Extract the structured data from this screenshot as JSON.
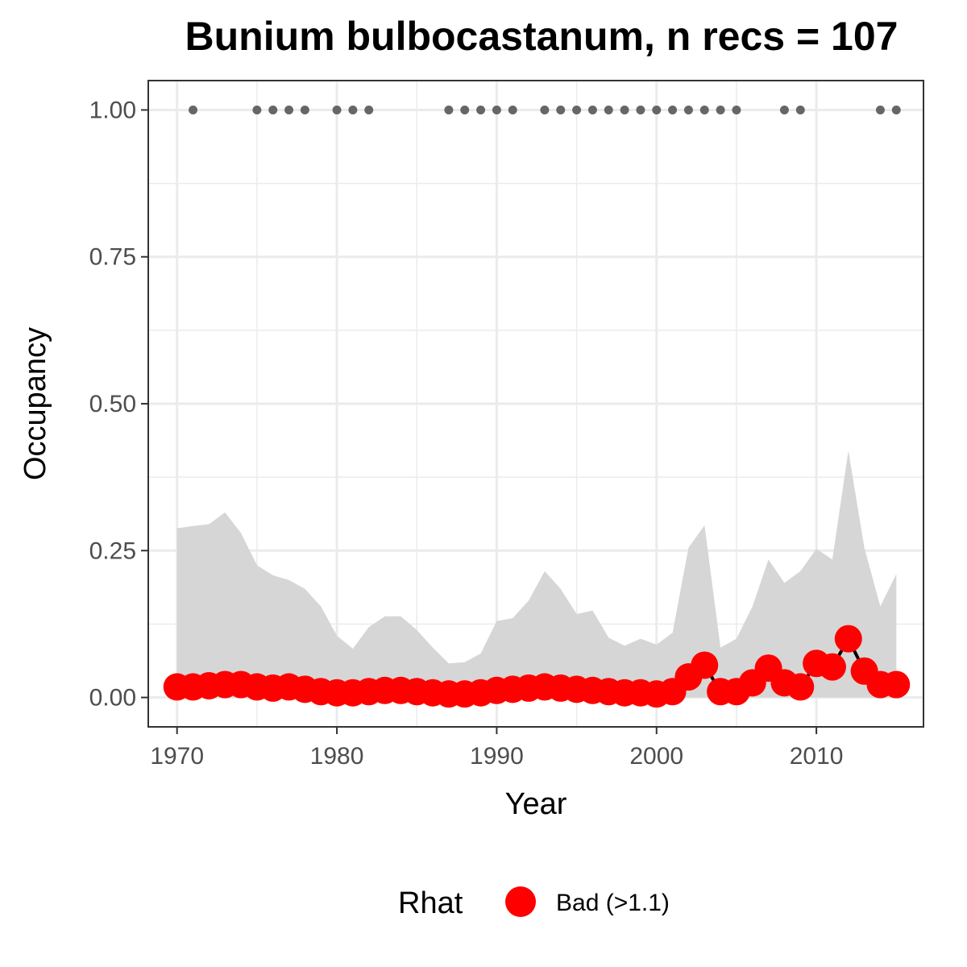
{
  "chart_data": {
    "type": "line",
    "title": "Bunium bulbocastanum, n recs = 107",
    "xlabel": "Year",
    "ylabel": "Occupancy",
    "xlim": [
      1968.2,
      2016.7
    ],
    "ylim": [
      -0.05,
      1.05
    ],
    "x_ticks": [
      1970,
      1980,
      1990,
      2000,
      2010
    ],
    "x_tick_labels": [
      "1970",
      "1980",
      "1990",
      "2000",
      "2010"
    ],
    "y_ticks": [
      0,
      0.25,
      0.5,
      0.75,
      1
    ],
    "y_tick_labels": [
      "0.00",
      "0.25",
      "0.50",
      "0.75",
      "1.00"
    ],
    "grid": true,
    "legend": {
      "title": "Rhat",
      "position": "bottom",
      "entries": [
        {
          "label": "Bad (>1.1)",
          "color": "#ff0000"
        }
      ]
    },
    "colors": {
      "ribbon": "#d6d6d6",
      "points": "#ff0000",
      "line": "#000000",
      "records": "#666666",
      "grid": "#ebebeb",
      "panel_border": "#333333"
    },
    "years": [
      1970,
      1971,
      1972,
      1973,
      1974,
      1975,
      1976,
      1977,
      1978,
      1979,
      1980,
      1981,
      1982,
      1983,
      1984,
      1985,
      1986,
      1987,
      1988,
      1989,
      1990,
      1991,
      1992,
      1993,
      1994,
      1995,
      1996,
      1997,
      1998,
      1999,
      2000,
      2001,
      2002,
      2003,
      2004,
      2005,
      2006,
      2007,
      2008,
      2009,
      2010,
      2011,
      2012,
      2013,
      2014,
      2015
    ],
    "series": [
      {
        "name": "Bad (>1.1)",
        "values": [
          0.018,
          0.018,
          0.02,
          0.022,
          0.022,
          0.018,
          0.016,
          0.018,
          0.014,
          0.01,
          0.008,
          0.008,
          0.01,
          0.012,
          0.012,
          0.01,
          0.008,
          0.006,
          0.006,
          0.008,
          0.012,
          0.014,
          0.016,
          0.018,
          0.016,
          0.014,
          0.012,
          0.01,
          0.008,
          0.008,
          0.006,
          0.01,
          0.035,
          0.055,
          0.01,
          0.01,
          0.025,
          0.05,
          0.025,
          0.018,
          0.058,
          0.052,
          0.1,
          0.045,
          0.022,
          0.022
        ]
      }
    ],
    "ribbon_upper": [
      0.288,
      0.292,
      0.295,
      0.315,
      0.28,
      0.225,
      0.208,
      0.2,
      0.185,
      0.155,
      0.105,
      0.083,
      0.12,
      0.138,
      0.138,
      0.115,
      0.085,
      0.058,
      0.06,
      0.075,
      0.13,
      0.135,
      0.165,
      0.215,
      0.185,
      0.142,
      0.148,
      0.102,
      0.088,
      0.1,
      0.09,
      0.11,
      0.255,
      0.293,
      0.085,
      0.1,
      0.155,
      0.235,
      0.195,
      0.215,
      0.253,
      0.235,
      0.42,
      0.255,
      0.155,
      0.21
    ],
    "ribbon_lower": [
      0,
      0,
      0,
      0,
      0,
      0,
      0,
      0,
      0,
      0,
      0,
      0,
      0,
      0,
      0,
      0,
      0,
      0,
      0,
      0,
      0,
      0,
      0,
      0,
      0,
      0,
      0,
      0,
      0,
      0,
      0,
      0,
      0,
      0,
      0,
      0,
      0,
      0,
      0,
      0,
      0,
      0,
      0,
      0,
      0,
      0
    ],
    "record_years": [
      1971,
      1975,
      1976,
      1977,
      1978,
      1980,
      1981,
      1982,
      1987,
      1988,
      1989,
      1990,
      1991,
      1993,
      1994,
      1995,
      1996,
      1997,
      1998,
      1999,
      2000,
      2001,
      2002,
      2003,
      2004,
      2005,
      2008,
      2009,
      2014,
      2015
    ],
    "record_value": 1.0
  }
}
